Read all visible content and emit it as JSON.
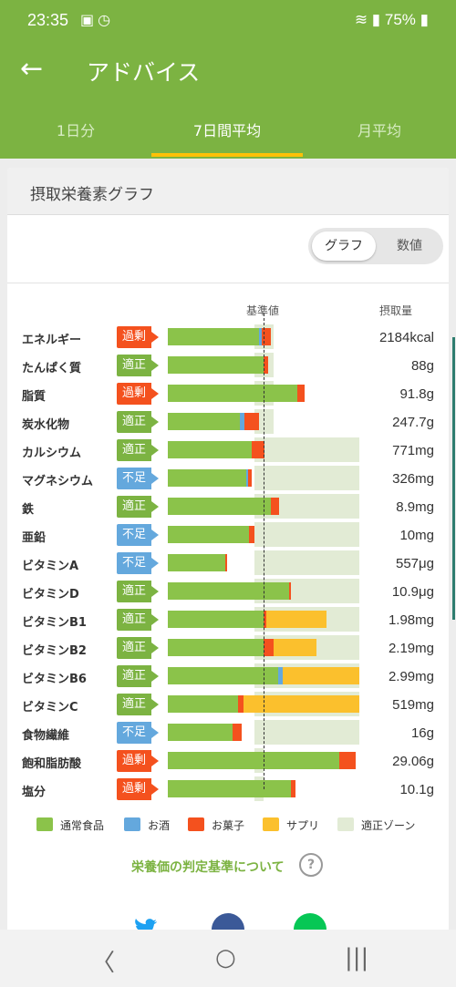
{
  "status": {
    "time": "23:35",
    "battery": "75%"
  },
  "header": {
    "title": "アドバイス",
    "back_icon": "arrow-left-icon"
  },
  "tabs": [
    {
      "label": "1日分",
      "active": false
    },
    {
      "label": "7日間平均",
      "active": true
    },
    {
      "label": "月平均",
      "active": false
    }
  ],
  "card": {
    "title": "摂取栄養素グラフ",
    "toggle": {
      "graph": "グラフ",
      "numbers": "数値",
      "selected": "グラフ"
    },
    "col_reference": "基準値",
    "col_intake": "摂取量"
  },
  "colors": {
    "normal_food": "#8bc34a",
    "alcohol": "#64a8dd",
    "snacks": "#f4511e",
    "supplement": "#fbc02d",
    "proper_zone": "#e2ebd5"
  },
  "chart_data": {
    "type": "bar",
    "reference_value": 1.0,
    "unit": "ratio to reference value",
    "rows": [
      {
        "name": "エネルギー",
        "status": "過剰",
        "value_text": "2184kcal",
        "zone": [
          0.9,
          1.1
        ],
        "segments": {
          "food": 0.95,
          "alcohol": 0.03,
          "snacks": 0.1,
          "supplement": 0
        }
      },
      {
        "name": "たんぱく質",
        "status": "適正",
        "value_text": "88g",
        "zone": [
          0.9,
          1.1
        ],
        "segments": {
          "food": 1.0,
          "alcohol": 0,
          "snacks": 0.05,
          "supplement": 0
        }
      },
      {
        "name": "脂質",
        "status": "過剰",
        "value_text": "91.8g",
        "zone": [
          0.9,
          1.1
        ],
        "segments": {
          "food": 1.35,
          "alcohol": 0,
          "snacks": 0.08,
          "supplement": 0
        }
      },
      {
        "name": "炭水化物",
        "status": "適正",
        "value_text": "247.7g",
        "zone": [
          0.9,
          1.1
        ],
        "segments": {
          "food": 0.75,
          "alcohol": 0.05,
          "snacks": 0.15,
          "supplement": 0
        }
      },
      {
        "name": "カルシウム",
        "status": "適正",
        "value_text": "771mg",
        "zone": [
          0.9,
          2.0
        ],
        "segments": {
          "food": 0.88,
          "alcohol": 0,
          "snacks": 0.13,
          "supplement": 0
        }
      },
      {
        "name": "マグネシウム",
        "status": "不足",
        "value_text": "326mg",
        "zone": [
          0.9,
          2.0
        ],
        "segments": {
          "food": 0.82,
          "alcohol": 0.02,
          "snacks": 0.04,
          "supplement": 0
        }
      },
      {
        "name": "鉄",
        "status": "適正",
        "value_text": "8.9mg",
        "zone": [
          0.9,
          2.0
        ],
        "segments": {
          "food": 1.08,
          "alcohol": 0,
          "snacks": 0.08,
          "supplement": 0
        }
      },
      {
        "name": "亜鉛",
        "status": "不足",
        "value_text": "10mg",
        "zone": [
          0.9,
          2.0
        ],
        "segments": {
          "food": 0.85,
          "alcohol": 0,
          "snacks": 0.05,
          "supplement": 0
        }
      },
      {
        "name": "ビタミンA",
        "status": "不足",
        "value_text": "557μg",
        "zone": [
          0.9,
          2.0
        ],
        "segments": {
          "food": 0.6,
          "alcohol": 0,
          "snacks": 0.02,
          "supplement": 0
        }
      },
      {
        "name": "ビタミンD",
        "status": "適正",
        "value_text": "10.9μg",
        "zone": [
          0.9,
          2.0
        ],
        "segments": {
          "food": 1.27,
          "alcohol": 0,
          "snacks": 0.02,
          "supplement": 0
        }
      },
      {
        "name": "ビタミンB1",
        "status": "適正",
        "value_text": "1.98mg",
        "zone": [
          0.9,
          2.0
        ],
        "segments": {
          "food": 1.0,
          "alcohol": 0,
          "snacks": 0.03,
          "supplement": 0.63
        }
      },
      {
        "name": "ビタミンB2",
        "status": "適正",
        "value_text": "2.19mg",
        "zone": [
          0.9,
          2.0
        ],
        "segments": {
          "food": 1.0,
          "alcohol": 0,
          "snacks": 0.1,
          "supplement": 0.45
        }
      },
      {
        "name": "ビタミンB6",
        "status": "適正",
        "value_text": "2.99mg",
        "zone": [
          0.9,
          2.0
        ],
        "segments": {
          "food": 1.15,
          "alcohol": 0.05,
          "snacks": 0,
          "supplement": 0.8
        }
      },
      {
        "name": "ビタミンC",
        "status": "適正",
        "value_text": "519mg",
        "zone": [
          0.9,
          2.0
        ],
        "segments": {
          "food": 0.73,
          "alcohol": 0,
          "snacks": 0.06,
          "supplement": 1.21
        }
      },
      {
        "name": "食物繊維",
        "status": "不足",
        "value_text": "16g",
        "zone": [
          0.9,
          2.0
        ],
        "segments": {
          "food": 0.68,
          "alcohol": 0,
          "snacks": 0.09,
          "supplement": 0
        }
      },
      {
        "name": "飽和脂肪酸",
        "status": "過剰",
        "value_text": "29.06g",
        "zone": [
          0.9,
          1.0
        ],
        "segments": {
          "food": 1.79,
          "alcohol": 0,
          "snacks": 0.17,
          "supplement": 0
        }
      },
      {
        "name": "塩分",
        "status": "過剰",
        "value_text": "10.1g",
        "zone": [
          0.9,
          1.0
        ],
        "segments": {
          "food": 1.29,
          "alcohol": 0,
          "snacks": 0.04,
          "supplement": 0
        }
      }
    ]
  },
  "legend": [
    {
      "label": "通常食品",
      "color": "#8bc34a"
    },
    {
      "label": "お酒",
      "color": "#64a8dd"
    },
    {
      "label": "お菓子",
      "color": "#f4511e"
    },
    {
      "label": "サプリ",
      "color": "#fbc02d"
    },
    {
      "label": "適正ゾーン",
      "color": "#e2ebd5"
    }
  ],
  "criteria_link": "栄養価の判定基準について",
  "share": {
    "twitter_icon": "twitter-icon",
    "facebook_icon": "facebook-icon",
    "line_icon": "line-icon"
  },
  "nav": {
    "back": "〈",
    "home": "○",
    "recents": "|||"
  }
}
